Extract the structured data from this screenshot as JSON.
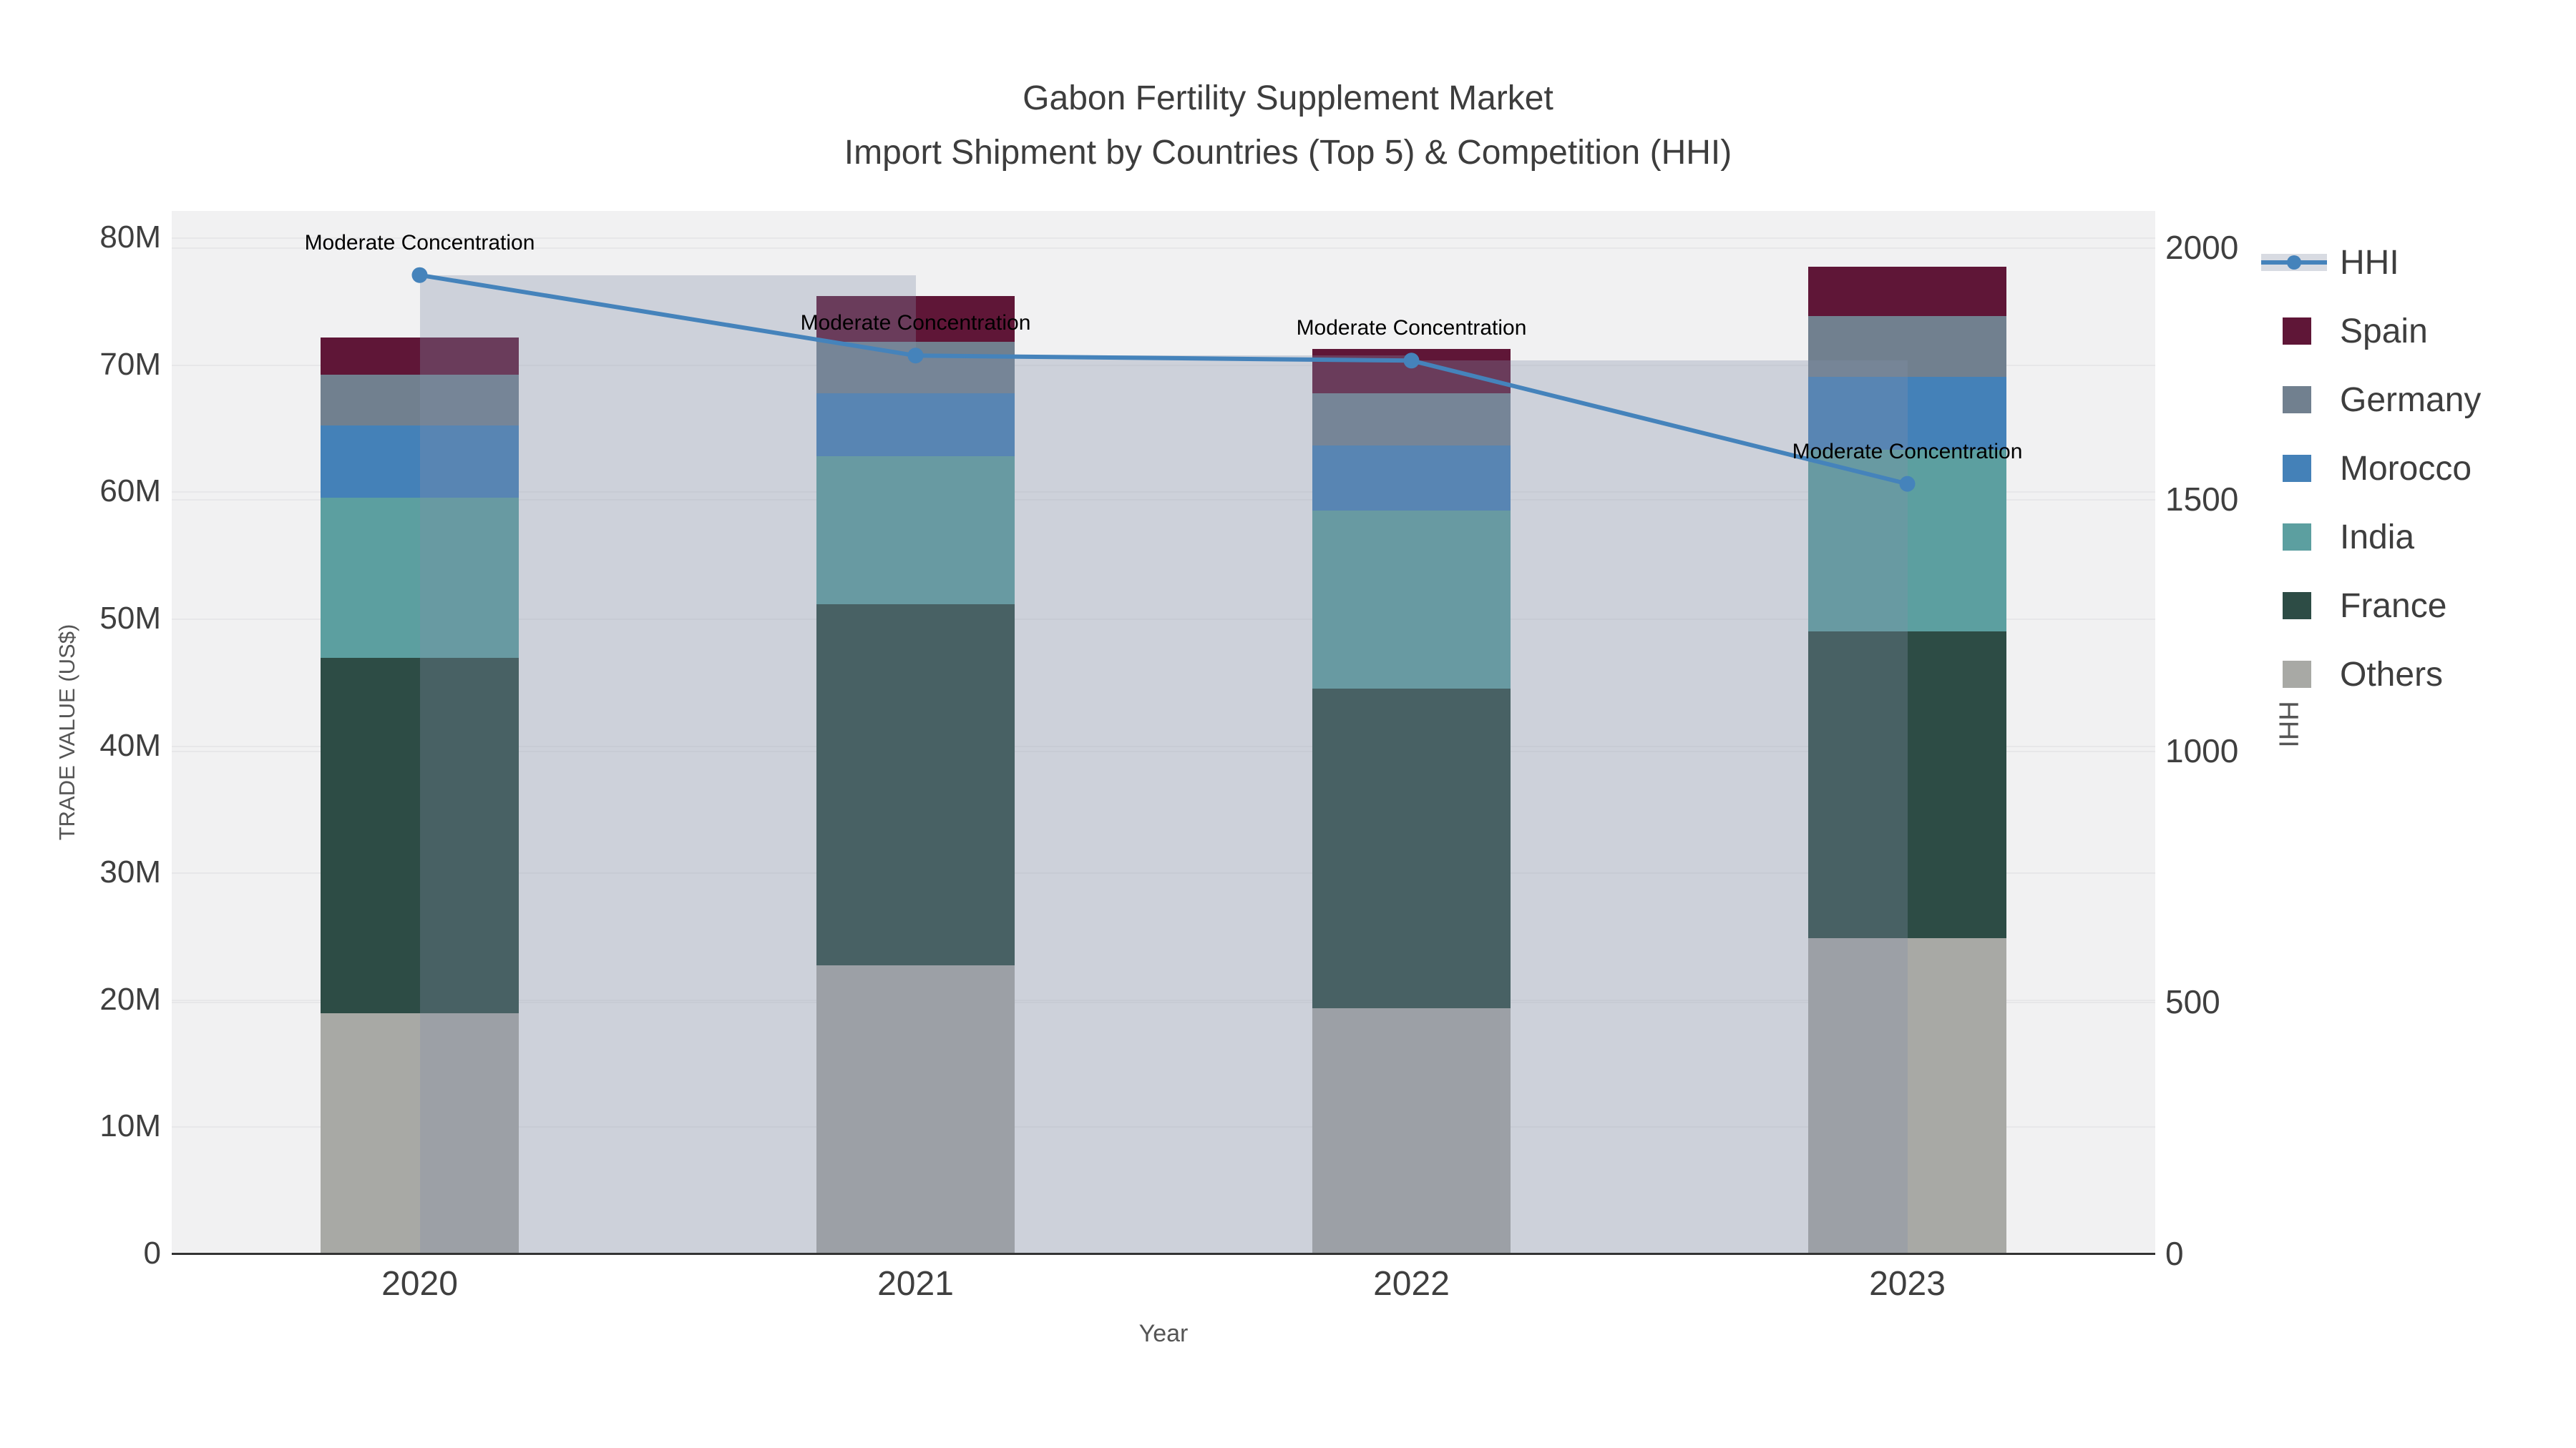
{
  "title": {
    "line1": "Gabon Fertility Supplement Market",
    "line2": "Import Shipment by Countries (Top 5) & Competition (HHI)"
  },
  "axes": {
    "x": {
      "title": "Year",
      "ticks": [
        "2020",
        "2021",
        "2022",
        "2023"
      ]
    },
    "y_left": {
      "title": "TRADE VALUE (US$)",
      "ticks": [
        "0",
        "10M",
        "20M",
        "30M",
        "40M",
        "50M",
        "60M",
        "70M",
        "80M"
      ]
    },
    "y_right": {
      "title": "HHI",
      "ticks": [
        "0",
        "500",
        "1000",
        "1500",
        "2000"
      ]
    }
  },
  "legend": {
    "items": [
      {
        "label": "HHI",
        "type": "line",
        "color": "#4583bb"
      },
      {
        "label": "Spain",
        "type": "bar",
        "color": "#5f1637"
      },
      {
        "label": "Germany",
        "type": "bar",
        "color": "#71808f"
      },
      {
        "label": "Morocco",
        "type": "bar",
        "color": "#4481b8"
      },
      {
        "label": "India",
        "type": "bar",
        "color": "#5c9fa0"
      },
      {
        "label": "France",
        "type": "bar",
        "color": "#2d4c45"
      },
      {
        "label": "Others",
        "type": "bar",
        "color": "#a8a9a5"
      }
    ]
  },
  "chart_data": {
    "type": "stacked-bar+line",
    "categories": [
      "2020",
      "2021",
      "2022",
      "2023"
    ],
    "value_unit": "US$ millions",
    "series": [
      {
        "name": "Spain",
        "color": "#5f1637",
        "values": [
          2.9,
          3.6,
          3.5,
          3.9
        ]
      },
      {
        "name": "Germany",
        "color": "#71808f",
        "values": [
          4.0,
          4.1,
          4.1,
          4.8
        ]
      },
      {
        "name": "Morocco",
        "color": "#4481b8",
        "values": [
          5.7,
          4.9,
          5.1,
          5.7
        ]
      },
      {
        "name": "India",
        "color": "#5c9fa0",
        "values": [
          12.6,
          11.7,
          14.0,
          14.3
        ]
      },
      {
        "name": "France",
        "color": "#2d4c45",
        "values": [
          28.0,
          28.4,
          25.2,
          24.2
        ]
      },
      {
        "name": "Others",
        "color": "#a8a9a5",
        "values": [
          18.9,
          22.7,
          19.3,
          24.8
        ]
      }
    ],
    "stack_order_bottom_to_top": [
      "Others",
      "France",
      "India",
      "Morocco",
      "Germany",
      "Spain"
    ],
    "line": {
      "name": "HHI",
      "axis": "right",
      "color": "#4583bb",
      "values": [
        1945,
        1785,
        1775,
        1530
      ],
      "band_color": "rgba(130,142,168,0.32)"
    },
    "annotations": [
      "Moderate Concentration",
      "Moderate Concentration",
      "Moderate Concentration",
      "Moderate Concentration"
    ],
    "title": "Gabon Fertility Supplement Market Import Shipment by Countries (Top 5) & Competition (HHI)",
    "xlabel": "Year",
    "ylabel_left": "TRADE VALUE (US$)",
    "ylabel_right": "HHI",
    "ylim_left": [
      0,
      80000000
    ],
    "ylim_right": [
      0,
      2000
    ],
    "grid": true,
    "legend_position": "right",
    "plot_background": "#f1f1f2"
  }
}
